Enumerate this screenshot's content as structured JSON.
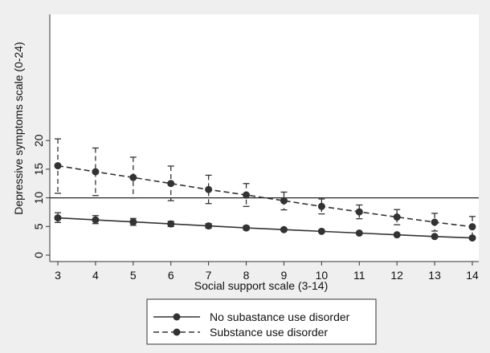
{
  "chart_data": {
    "type": "line",
    "xlabel": "Social support scale (3-14)",
    "ylabel": "Depressive symptoms scale (0-24)",
    "xlim": [
      3,
      14
    ],
    "ylim": [
      0,
      20
    ],
    "x_ticks": [
      "3",
      "4",
      "5",
      "6",
      "7",
      "8",
      "9",
      "10",
      "11",
      "12",
      "13",
      "14"
    ],
    "y_ticks": [
      "0",
      "5",
      "10",
      "15",
      "20"
    ],
    "x": [
      3,
      4,
      5,
      6,
      7,
      8,
      9,
      10,
      11,
      12,
      13,
      14
    ],
    "reference_line_y": 10,
    "legend_position": "bottom",
    "grid": false,
    "series": [
      {
        "name": "No subastance use disorder",
        "style": "solid",
        "color": "#333333",
        "values": [
          6.5,
          6.15,
          5.8,
          5.45,
          5.1,
          4.75,
          4.45,
          4.15,
          3.85,
          3.55,
          3.25,
          3.0
        ],
        "ci_low": [
          5.7,
          5.5,
          5.2,
          5.0,
          4.7,
          4.4,
          4.3,
          4.0,
          3.8,
          3.45,
          3.1,
          2.75
        ],
        "ci_high": [
          7.4,
          6.9,
          6.4,
          5.9,
          5.5,
          5.1,
          4.65,
          4.35,
          3.95,
          3.7,
          3.45,
          3.2
        ]
      },
      {
        "name": "Substance use disorder",
        "style": "dashed",
        "color": "#333333",
        "values": [
          15.6,
          14.55,
          13.55,
          12.5,
          11.45,
          10.5,
          9.5,
          8.5,
          7.55,
          6.65,
          5.75,
          4.95
        ],
        "ci_low": [
          10.8,
          10.4,
          10.0,
          9.5,
          9.0,
          8.5,
          7.9,
          7.2,
          6.35,
          5.3,
          4.2,
          3.1
        ],
        "ci_high": [
          20.3,
          18.7,
          17.1,
          15.55,
          13.95,
          12.5,
          11.0,
          9.8,
          8.75,
          7.95,
          7.3,
          6.75
        ]
      }
    ]
  }
}
